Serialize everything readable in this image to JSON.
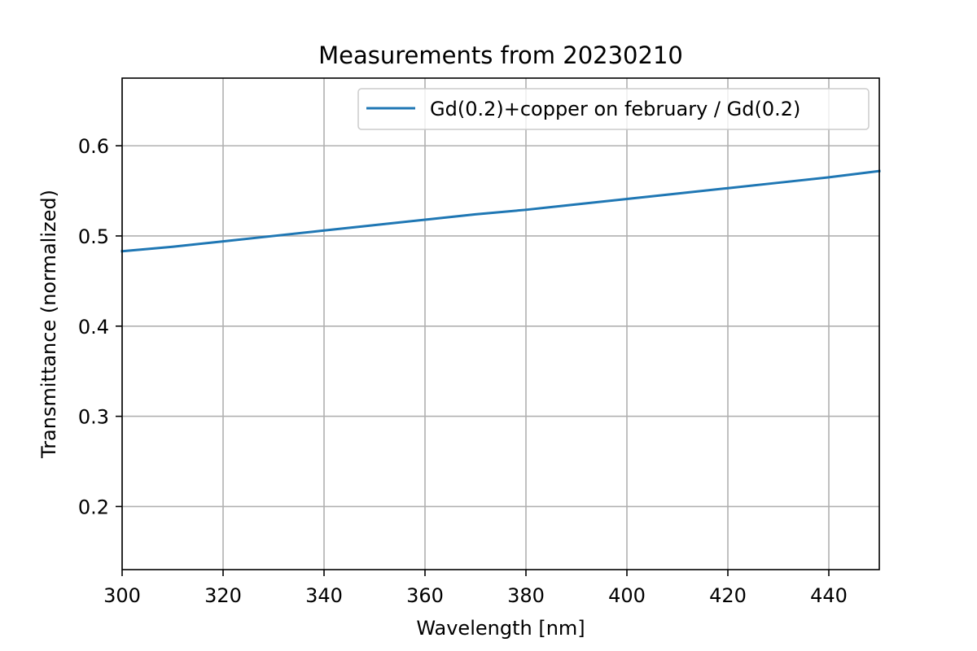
{
  "chart_data": {
    "type": "line",
    "title": "Measurements from 20230210",
    "xlabel": "Wavelength [nm]",
    "ylabel": "Transmittance (normalized)",
    "xlim": [
      300,
      450
    ],
    "ylim": [
      0.13,
      0.675
    ],
    "xticks": [
      300,
      320,
      340,
      360,
      380,
      400,
      420,
      440
    ],
    "xtick_labels": [
      "300",
      "320",
      "340",
      "360",
      "380",
      "400",
      "420",
      "440"
    ],
    "yticks": [
      0.2,
      0.3,
      0.4,
      0.5,
      0.6
    ],
    "ytick_labels": [
      "0.2",
      "0.3",
      "0.4",
      "0.5",
      "0.6"
    ],
    "grid": true,
    "legend_position": "top-right",
    "series": [
      {
        "name": "Gd(0.2)+copper on february / Gd(0.2)",
        "color": "#1f77b4",
        "x": [
          300,
          310,
          320,
          330,
          340,
          350,
          360,
          370,
          380,
          390,
          400,
          410,
          420,
          430,
          440,
          450
        ],
        "y": [
          0.483,
          0.488,
          0.494,
          0.5,
          0.506,
          0.512,
          0.518,
          0.524,
          0.529,
          0.535,
          0.541,
          0.547,
          0.553,
          0.559,
          0.565,
          0.572
        ]
      }
    ]
  }
}
